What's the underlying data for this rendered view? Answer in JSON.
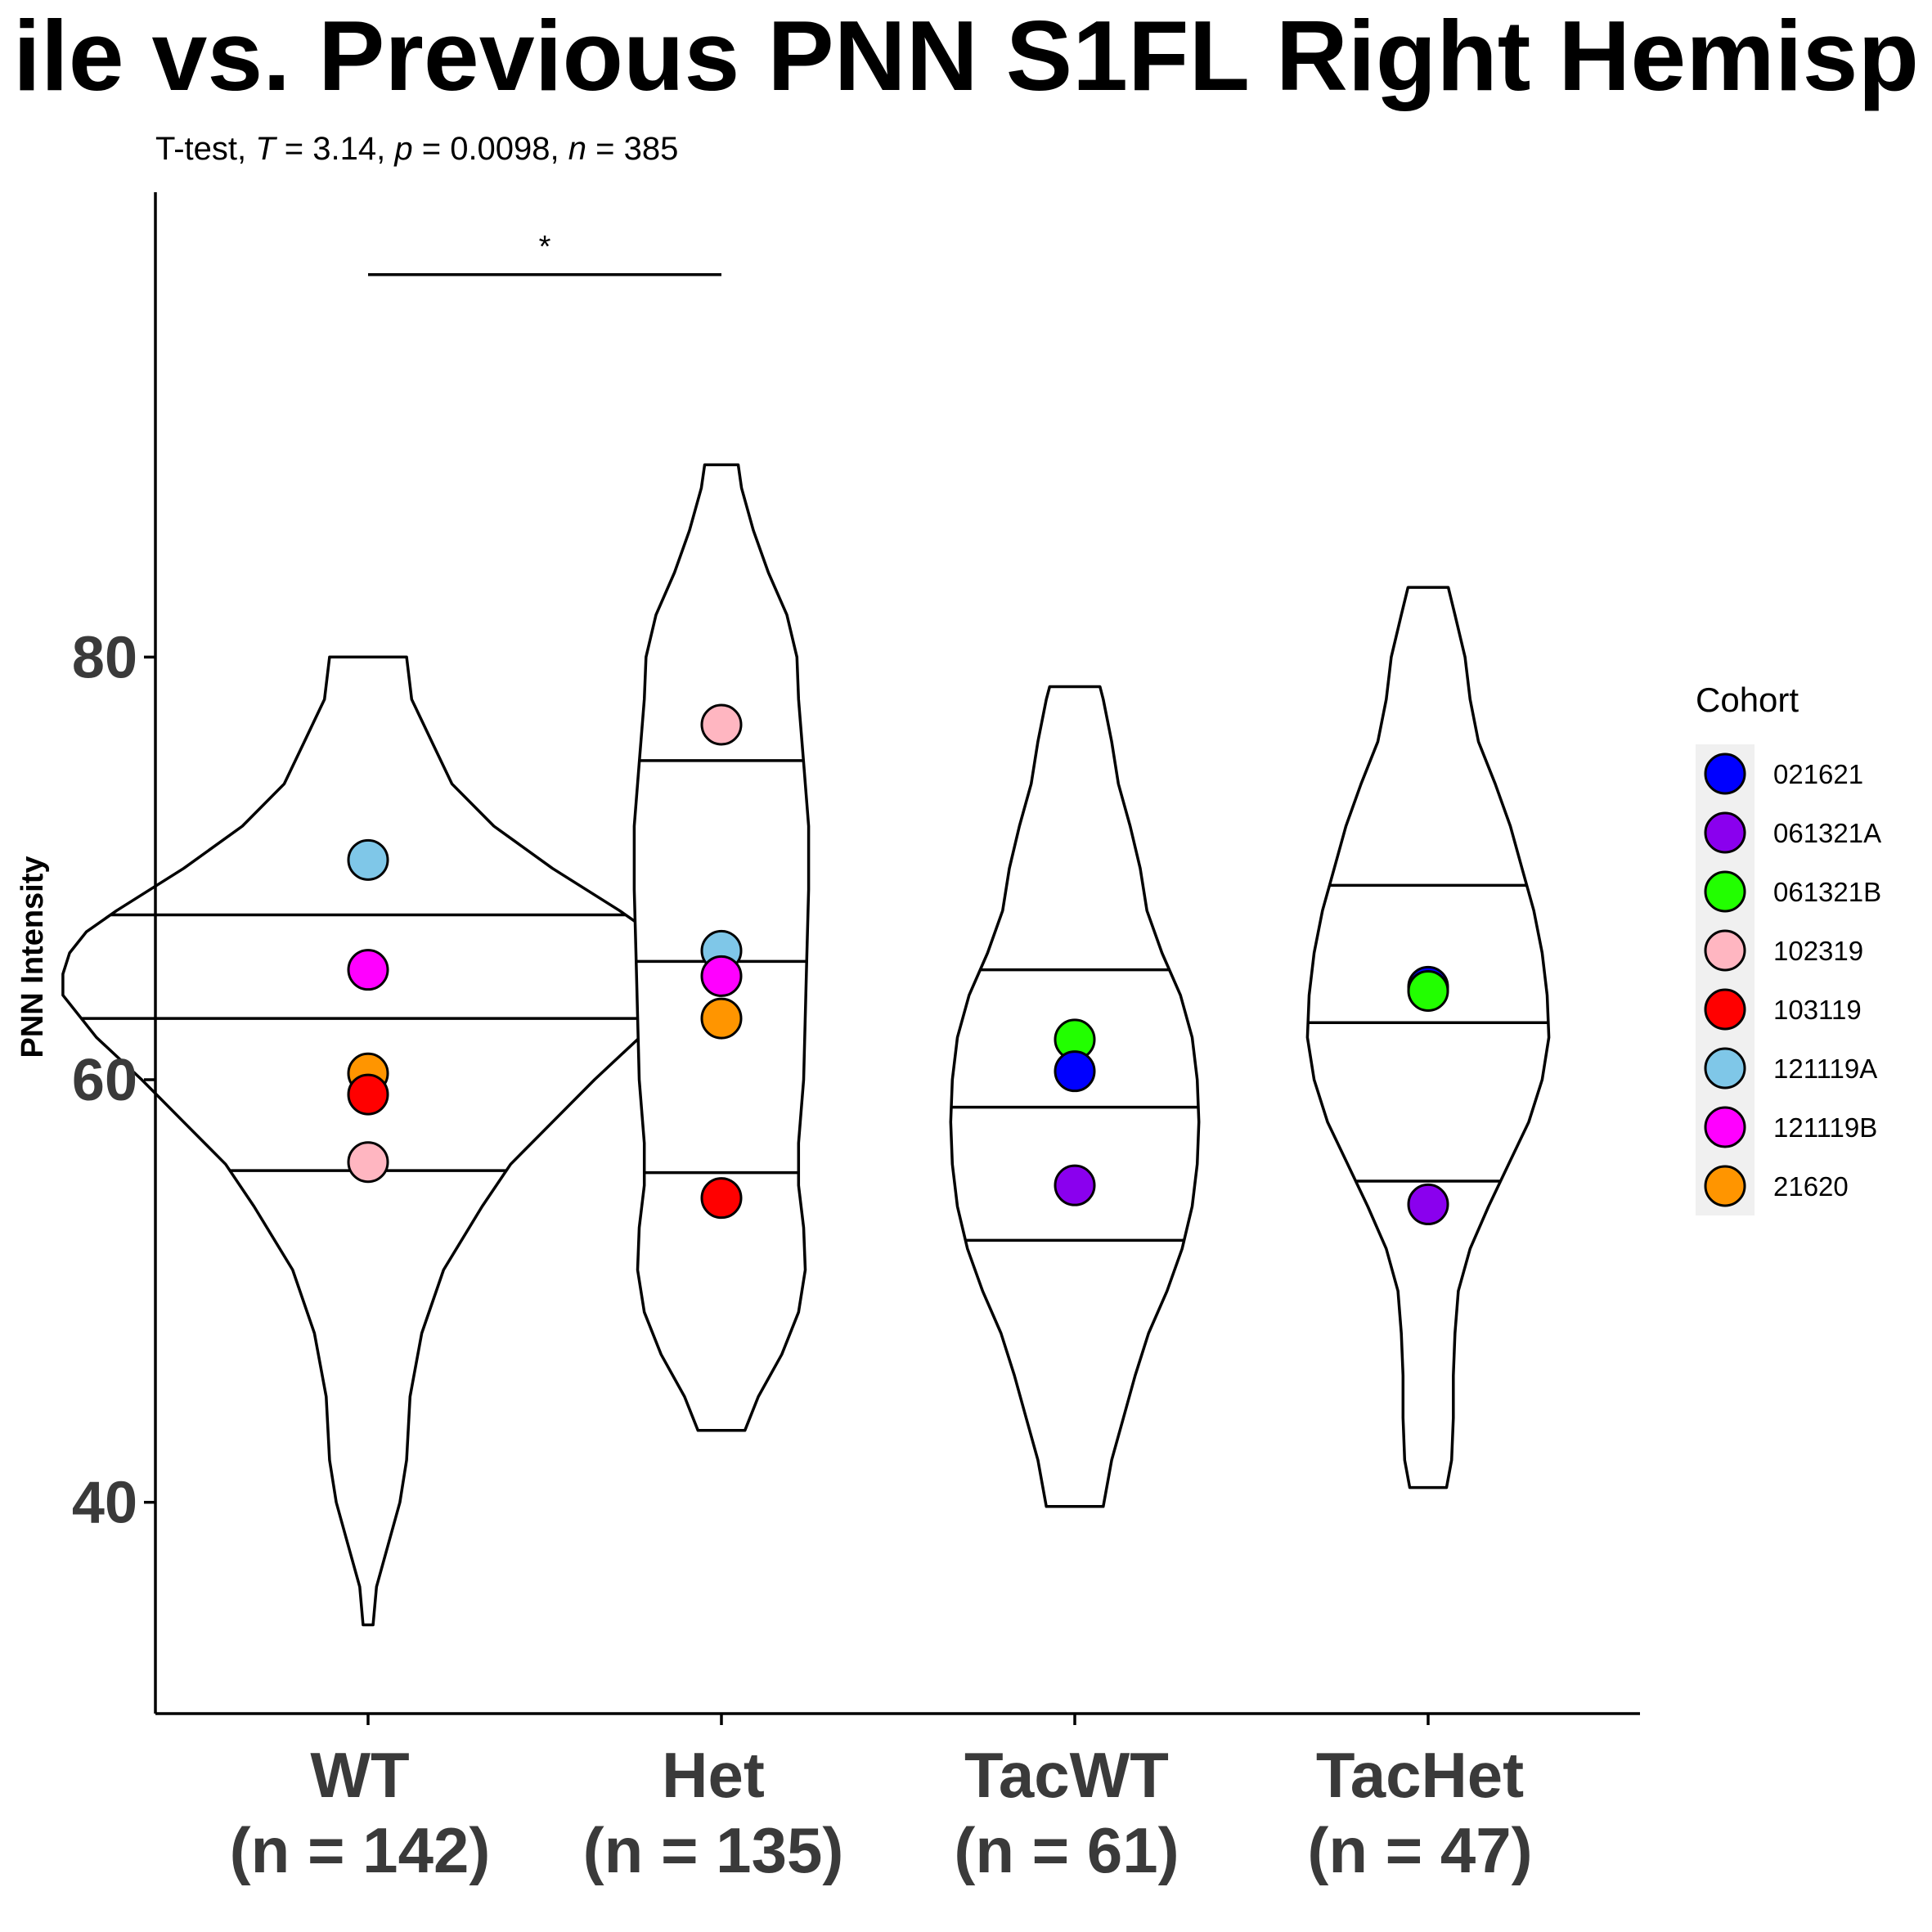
{
  "chart_data": {
    "type": "violin",
    "title": "ile vs. Previous PNN S1FL Right Hemisp",
    "subtitle": {
      "prefix": "T-test, ",
      "t_symbol": "T",
      "t_value": " = 3.14, ",
      "p_symbol": "p",
      "p_value": " = 0.0098, ",
      "n_symbol": "n",
      "n_value": " = 385"
    },
    "ylabel": "PNN Intensity",
    "ylim": [
      30,
      102
    ],
    "yticks": [
      40,
      60,
      80
    ],
    "grid": false,
    "categories": [
      "WT",
      "Het",
      "TacWT",
      "TacHet"
    ],
    "category_labels": [
      [
        "WT",
        "(n = 142)"
      ],
      [
        "Het",
        "(n = 135)"
      ],
      [
        "TacWT",
        "(n = 61)"
      ],
      [
        "TacHet",
        "(n = 47)"
      ]
    ],
    "violins": [
      {
        "min": 34.2,
        "max": 80.0,
        "quantiles": [
          55.7,
          62.9,
          67.8
        ],
        "profile": [
          [
            34.2,
            0.3
          ],
          [
            36,
            0.5
          ],
          [
            38,
            1.2
          ],
          [
            40,
            1.9
          ],
          [
            42,
            2.3
          ],
          [
            45,
            2.5
          ],
          [
            48,
            3.2
          ],
          [
            51,
            4.5
          ],
          [
            54,
            6.8
          ],
          [
            56,
            8.5
          ],
          [
            58,
            11
          ],
          [
            60,
            13.5
          ],
          [
            62,
            16.2
          ],
          [
            64,
            18.2
          ],
          [
            65,
            18.2
          ],
          [
            66,
            17.8
          ],
          [
            67,
            16.8
          ],
          [
            68,
            15
          ],
          [
            70,
            11
          ],
          [
            72,
            7.5
          ],
          [
            74,
            5
          ],
          [
            76,
            3.8
          ],
          [
            78,
            2.6
          ],
          [
            80,
            2.3
          ]
        ]
      },
      {
        "min": 43.4,
        "max": 89.1,
        "quantiles": [
          55.6,
          65.6,
          75.1
        ],
        "profile": [
          [
            43.4,
            1.4
          ],
          [
            45,
            2.2
          ],
          [
            47,
            3.6
          ],
          [
            49,
            4.6
          ],
          [
            51,
            5.0
          ],
          [
            53,
            4.9
          ],
          [
            55,
            4.6
          ],
          [
            57,
            4.6
          ],
          [
            60,
            4.9
          ],
          [
            63,
            5.0
          ],
          [
            66,
            5.1
          ],
          [
            69,
            5.2
          ],
          [
            72,
            5.2
          ],
          [
            75,
            4.9
          ],
          [
            78,
            4.6
          ],
          [
            80,
            4.5
          ],
          [
            82,
            3.9
          ],
          [
            84,
            2.8
          ],
          [
            86,
            1.9
          ],
          [
            88,
            1.2
          ],
          [
            89.1,
            1.0
          ]
        ]
      },
      {
        "min": 39.8,
        "max": 78.6,
        "quantiles": [
          52.4,
          58.7,
          65.2
        ],
        "profile": [
          [
            39.8,
            1.7
          ],
          [
            42,
            2.2
          ],
          [
            44,
            2.9
          ],
          [
            46,
            3.6
          ],
          [
            48,
            4.4
          ],
          [
            50,
            5.5
          ],
          [
            52,
            6.4
          ],
          [
            54,
            7.0
          ],
          [
            56,
            7.3
          ],
          [
            58,
            7.4
          ],
          [
            60,
            7.3
          ],
          [
            62,
            7.0
          ],
          [
            64,
            6.3
          ],
          [
            66,
            5.2
          ],
          [
            68,
            4.3
          ],
          [
            70,
            3.9
          ],
          [
            72,
            3.3
          ],
          [
            74,
            2.6
          ],
          [
            76,
            2.2
          ],
          [
            78,
            1.7
          ],
          [
            78.6,
            1.5
          ]
        ]
      },
      {
        "min": 40.7,
        "max": 83.3,
        "quantiles": [
          55.2,
          62.7,
          69.2
        ],
        "profile": [
          [
            40.7,
            1.1
          ],
          [
            42,
            1.4
          ],
          [
            44,
            1.5
          ],
          [
            46,
            1.5
          ],
          [
            48,
            1.6
          ],
          [
            50,
            1.8
          ],
          [
            52,
            2.5
          ],
          [
            54,
            3.6
          ],
          [
            56,
            4.8
          ],
          [
            58,
            6.0
          ],
          [
            60,
            6.8
          ],
          [
            62,
            7.2
          ],
          [
            64,
            7.1
          ],
          [
            66,
            6.8
          ],
          [
            68,
            6.3
          ],
          [
            70,
            5.6
          ],
          [
            72,
            4.9
          ],
          [
            74,
            4.0
          ],
          [
            76,
            3.0
          ],
          [
            78,
            2.5
          ],
          [
            80,
            2.2
          ],
          [
            82,
            1.6
          ],
          [
            83.3,
            1.2
          ]
        ]
      }
    ],
    "points": [
      {
        "group": 0,
        "y": 70.4,
        "cohort": "121119A"
      },
      {
        "group": 0,
        "y": 65.2,
        "cohort": "121119B"
      },
      {
        "group": 0,
        "y": 60.3,
        "cohort": "21620"
      },
      {
        "group": 0,
        "y": 59.3,
        "cohort": "103119"
      },
      {
        "group": 0,
        "y": 56.1,
        "cohort": "102319"
      },
      {
        "group": 1,
        "y": 76.8,
        "cohort": "102319"
      },
      {
        "group": 1,
        "y": 66.1,
        "cohort": "121119A"
      },
      {
        "group": 1,
        "y": 64.9,
        "cohort": "121119B"
      },
      {
        "group": 1,
        "y": 62.9,
        "cohort": "21620"
      },
      {
        "group": 1,
        "y": 54.4,
        "cohort": "103119"
      },
      {
        "group": 2,
        "y": 61.9,
        "cohort": "061321B"
      },
      {
        "group": 2,
        "y": 60.4,
        "cohort": "021621"
      },
      {
        "group": 2,
        "y": 55.0,
        "cohort": "061321A"
      },
      {
        "group": 3,
        "y": 64.4,
        "cohort": "021621"
      },
      {
        "group": 3,
        "y": 64.2,
        "cohort": "061321B"
      },
      {
        "group": 3,
        "y": 54.1,
        "cohort": "061321A"
      }
    ],
    "significance": [
      {
        "from": 0,
        "to": 1,
        "y": 98.1,
        "label": "*"
      }
    ],
    "legend": {
      "title": "Cohort",
      "position": "right",
      "entries": [
        {
          "name": "021621",
          "color": "#0000FF"
        },
        {
          "name": "061321A",
          "color": "#8A00EE"
        },
        {
          "name": "061321B",
          "color": "#22FF00"
        },
        {
          "name": "102319",
          "color": "#FFB6C1"
        },
        {
          "name": "103119",
          "color": "#FF0000"
        },
        {
          "name": "121119A",
          "color": "#7FC7E8"
        },
        {
          "name": "121119B",
          "color": "#FF00FF"
        },
        {
          "name": "21620",
          "color": "#FF9500"
        }
      ]
    }
  }
}
